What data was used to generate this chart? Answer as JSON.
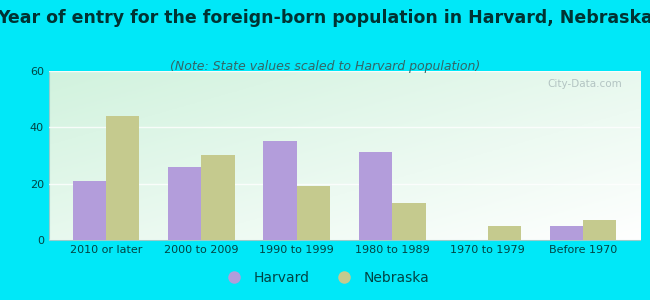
{
  "title": "Year of entry for the foreign-born population in Harvard, Nebraska",
  "subtitle": "(Note: State values scaled to Harvard population)",
  "categories": [
    "2010 or later",
    "2000 to 2009",
    "1990 to 1999",
    "1980 to 1989",
    "1970 to 1979",
    "Before 1970"
  ],
  "harvard_values": [
    21,
    26,
    35,
    31,
    0,
    5
  ],
  "nebraska_values": [
    44,
    30,
    19,
    13,
    5,
    7
  ],
  "harvard_color": "#b39ddb",
  "nebraska_color": "#c5ca8e",
  "background_outer": "#00e8f8",
  "ylim": [
    0,
    60
  ],
  "yticks": [
    0,
    20,
    40,
    60
  ],
  "bar_width": 0.35,
  "legend_harvard": "Harvard",
  "legend_nebraska": "Nebraska",
  "title_fontsize": 12.5,
  "subtitle_fontsize": 9,
  "tick_fontsize": 8,
  "legend_fontsize": 10,
  "title_color": "#003333",
  "subtitle_color": "#336666",
  "tick_color": "#004444"
}
